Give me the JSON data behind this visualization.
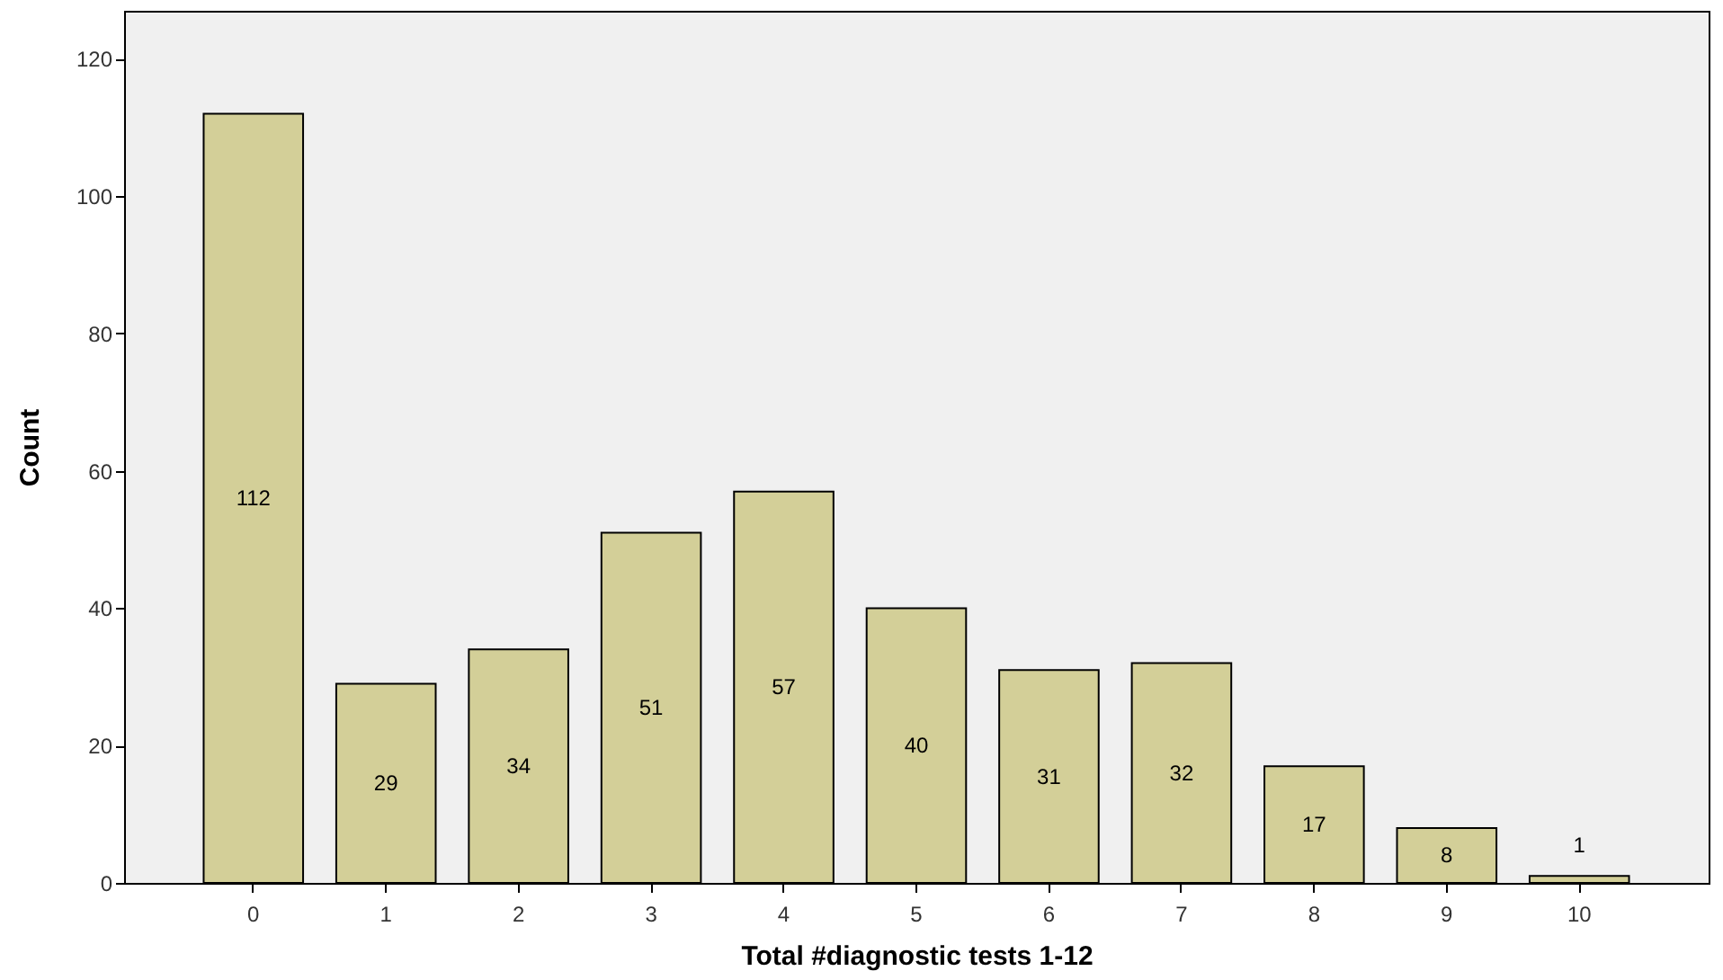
{
  "chart_data": {
    "type": "bar",
    "xlabel": "Total #diagnostic tests 1-12",
    "ylabel": "Count",
    "categories": [
      "0",
      "1",
      "2",
      "3",
      "4",
      "5",
      "6",
      "7",
      "8",
      "9",
      "10"
    ],
    "values": [
      112,
      29,
      34,
      51,
      57,
      40,
      31,
      32,
      17,
      8,
      1
    ],
    "color": "#d3cf98",
    "ylim": [
      0,
      127
    ],
    "yticks": [
      0,
      20,
      40,
      60,
      80,
      100,
      120
    ],
    "data_labels": true
  }
}
